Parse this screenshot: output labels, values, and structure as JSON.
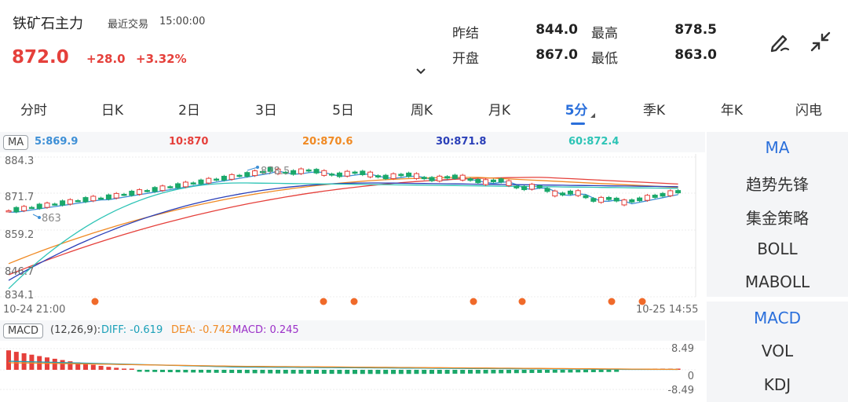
{
  "header": {
    "title": "铁矿石主力",
    "trade_label": "最近交易",
    "trade_time": "15:00:00",
    "price": "872.0",
    "change": "+28.0",
    "change_pct": "+3.32%",
    "stats": {
      "prev_settle_label": "昨结",
      "prev_settle": "844.0",
      "high_label": "最高",
      "high": "878.5",
      "open_label": "开盘",
      "open": "867.0",
      "low_label": "最低",
      "low": "863.0"
    },
    "icons": [
      "pen-icon",
      "collapse-icon"
    ]
  },
  "tabs": [
    "分时",
    "日K",
    "2日",
    "3日",
    "5日",
    "周K",
    "月K",
    "5分",
    "季K",
    "年K",
    "闪电"
  ],
  "active_tab": "5分",
  "ma": {
    "badge": "MA",
    "items": [
      {
        "label": "5:869.9",
        "color": "#3d8fd6"
      },
      {
        "label": "10:870",
        "color": "#e5403b"
      },
      {
        "label": "20:870.6",
        "color": "#f08a24"
      },
      {
        "label": "30:871.8",
        "color": "#2a3fb8"
      },
      {
        "label": "60:872.4",
        "color": "#2ec4b6"
      }
    ]
  },
  "y_axis": [
    "884.3",
    "871.7",
    "859.2",
    "846.7",
    "834.1"
  ],
  "markers": {
    "high": "878.5",
    "low": "863"
  },
  "time_axis": {
    "start": "10-24 21:00",
    "end": "10-25 14:55"
  },
  "macd": {
    "badge": "MACD",
    "params": "(12,26,9):",
    "diff": "DIFF: -0.619",
    "dea": "DEA: -0.742",
    "macd": "MACD: 0.245",
    "y_axis": [
      "8.49",
      "0",
      "-8.49"
    ]
  },
  "side_panel": {
    "top": [
      "MA",
      "趋势先锋",
      "集金策略",
      "BOLL",
      "MABOLL"
    ],
    "bottom": [
      "MACD",
      "VOL",
      "KDJ"
    ],
    "active_top": "MA",
    "active_bottom": "MACD"
  },
  "colors": {
    "up": "#e5403b",
    "down": "#1aa86a",
    "accent": "#2a6fdb"
  }
}
